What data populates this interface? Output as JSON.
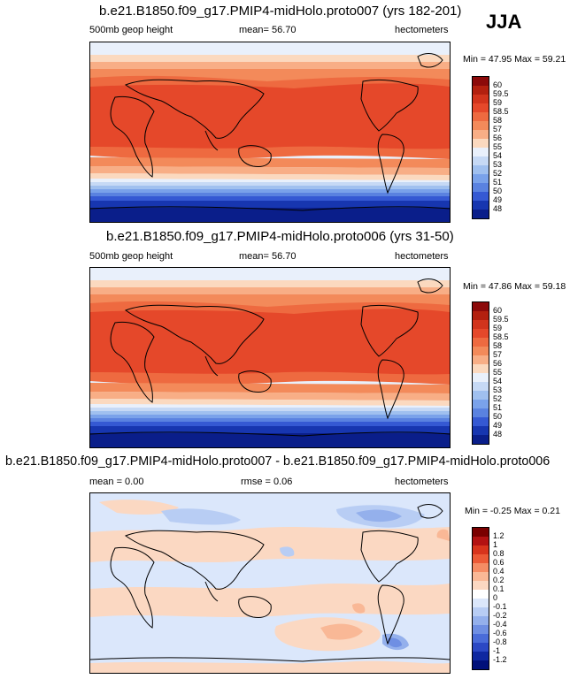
{
  "season": "JJA",
  "units": "hectometers",
  "variable": "500mb geop height",
  "chart_data": [
    {
      "type": "heatmap",
      "title": "b.e21.B1850.f09_g17.PMIP4-midHolo.proto007 (yrs 182-201)",
      "left_label": "500mb geop height",
      "center_label": "mean=  56.70",
      "right_label": "hectometers",
      "min_max": "Min =  47.95 Max =  59.21",
      "colorbar_levels": [
        "60",
        "59.5",
        "59",
        "58.5",
        "58",
        "57",
        "56",
        "55",
        "54",
        "53",
        "52",
        "51",
        "50",
        "49",
        "48"
      ]
    },
    {
      "type": "heatmap",
      "title": "b.e21.B1850.f09_g17.PMIP4-midHolo.proto006 (yrs 31-50)",
      "left_label": "500mb geop height",
      "center_label": "mean=  56.70",
      "right_label": "hectometers",
      "min_max": "Min =  47.86 Max =  59.18",
      "colorbar_levels": [
        "60",
        "59.5",
        "59",
        "58.5",
        "58",
        "57",
        "56",
        "55",
        "54",
        "53",
        "52",
        "51",
        "50",
        "49",
        "48"
      ]
    },
    {
      "type": "heatmap",
      "title": "b.e21.B1850.f09_g17.PMIP4-midHolo.proto007 - b.e21.B1850.f09_g17.PMIP4-midHolo.proto006",
      "left_label": "mean =  0.00",
      "center_label": "rmse =  0.06",
      "right_label": "hectometers",
      "min_max": "Min = -0.25 Max =  0.21",
      "colorbar_levels": [
        "1.2",
        "1",
        "0.8",
        "0.6",
        "0.4",
        "0.2",
        "0.1",
        "0",
        "-0.1",
        "-0.2",
        "-0.4",
        "-0.6",
        "-0.8",
        "-1",
        "-1.2"
      ]
    }
  ],
  "colors": {
    "abs_scale": [
      "#8c0a0a",
      "#b3200f",
      "#d2341c",
      "#e5482a",
      "#ee6a40",
      "#f38a5a",
      "#f8ae86",
      "#fbd9bf",
      "#e9f0fb",
      "#c6d9f5",
      "#a0c0ef",
      "#7aa2ea",
      "#5a82e0",
      "#3559d3",
      "#1736b0",
      "#0a1e8a"
    ],
    "diff_scale": [
      "#7a0000",
      "#b31212",
      "#d8341c",
      "#ec5a36",
      "#f58c64",
      "#f9b896",
      "#fbd8c2",
      "#ffffff",
      "#dbe7fb",
      "#b8cdf4",
      "#94b0ec",
      "#6f8fe3",
      "#4a6cd9",
      "#2b48c4",
      "#0f28a0",
      "#00107a"
    ]
  }
}
